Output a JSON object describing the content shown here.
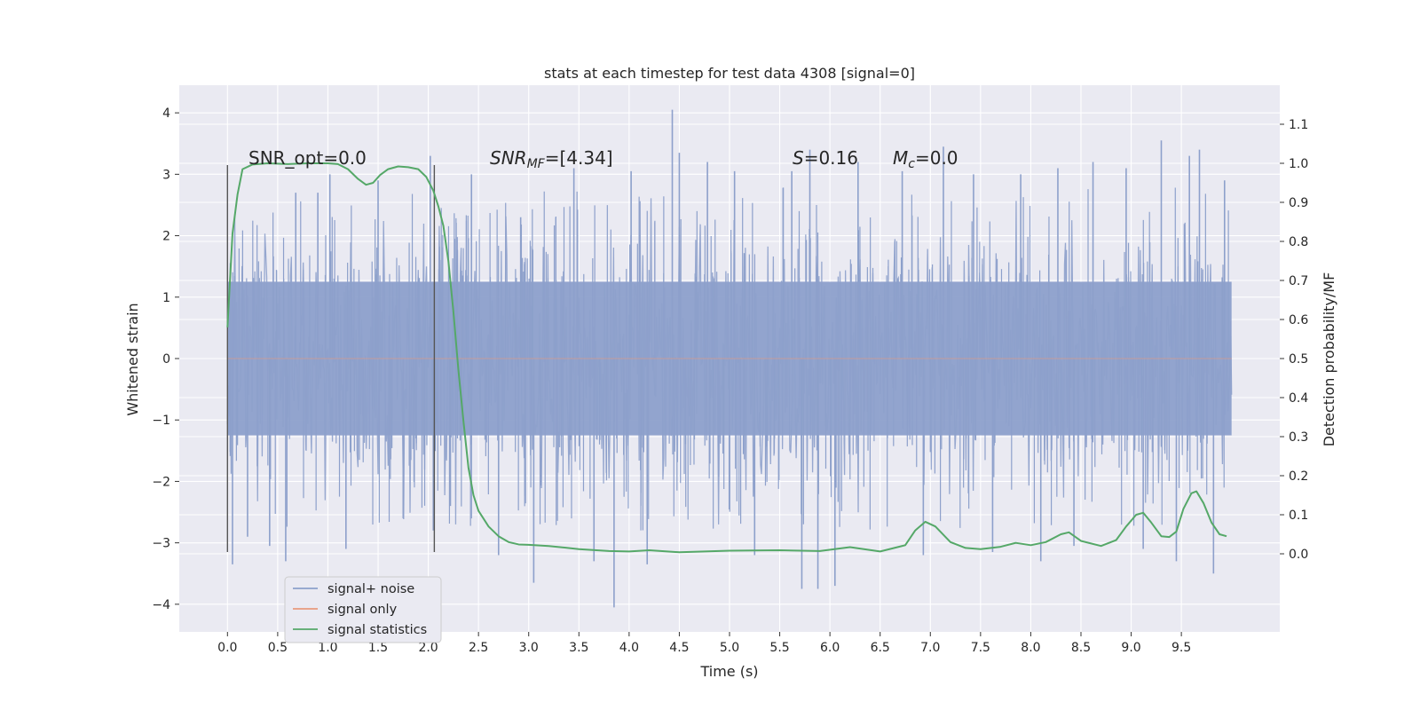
{
  "chart_data": {
    "type": "line",
    "title": "stats at each timestep for test data 4308 [signal=0]",
    "xlabel": "Time (s)",
    "ylabel": "Whitened strain",
    "ylabel_right": "Detection probability/MF",
    "xlim": [
      -0.48,
      10.48
    ],
    "ylim": [
      -4.45,
      4.45
    ],
    "ylim_right": [
      -0.2,
      1.2
    ],
    "x_ticks": [
      "0.0",
      "0.5",
      "1.0",
      "1.5",
      "2.0",
      "2.5",
      "3.0",
      "3.5",
      "4.0",
      "4.5",
      "5.0",
      "5.5",
      "6.0",
      "6.5",
      "7.0",
      "7.5",
      "8.0",
      "8.5",
      "9.0",
      "9.5"
    ],
    "y_ticks": [
      "4",
      "3",
      "2",
      "1",
      "0",
      "−1",
      "−2",
      "−3",
      "−4"
    ],
    "y_tick_values": [
      4,
      3,
      2,
      1,
      0,
      -1,
      -2,
      -3,
      -4
    ],
    "y_right_ticks": [
      "1.1",
      "1.0",
      "0.9",
      "0.8",
      "0.7",
      "0.6",
      "0.5",
      "0.4",
      "0.3",
      "0.2",
      "0.1",
      "0.0"
    ],
    "y_right_tick_values": [
      1.1,
      1.0,
      0.9,
      0.8,
      0.7,
      0.6,
      0.5,
      0.4,
      0.3,
      0.2,
      0.1,
      0.0
    ],
    "grid": true,
    "legend_position": "lower-left",
    "annotations": {
      "snr_opt": "SNR_opt=0.0",
      "snr_mf_a": "SNR",
      "snr_mf_b": "MF",
      "snr_mf_c": "=[4.34]",
      "s_a": "S",
      "s_b": "=0.16",
      "mc_a": "M",
      "mc_b": "c",
      "mc_c": "=0.0"
    },
    "markers_x": [
      0.0,
      2.06
    ],
    "markers_yrange": [
      -3.15,
      3.15
    ],
    "series": [
      {
        "name": "signal+ noise",
        "color": "#8da0cb",
        "description_values": "dense whitened noise spanning 0.0 to 10.0 s",
        "spikes": [
          [
            0.05,
            -3.35
          ],
          [
            0.2,
            -2.9
          ],
          [
            0.42,
            -3.05
          ],
          [
            0.58,
            -3.3
          ],
          [
            0.68,
            2.7
          ],
          [
            0.9,
            2.7
          ],
          [
            1.02,
            3.0
          ],
          [
            1.18,
            -3.1
          ],
          [
            1.5,
            2.9
          ],
          [
            1.75,
            -2.6
          ],
          [
            2.02,
            3.3
          ],
          [
            2.05,
            -2.8
          ],
          [
            2.22,
            -2.4
          ],
          [
            2.43,
            3.0
          ],
          [
            2.7,
            -3.2
          ],
          [
            2.92,
            2.3
          ],
          [
            3.05,
            -3.65
          ],
          [
            3.45,
            3.1
          ],
          [
            3.65,
            -3.3
          ],
          [
            3.85,
            -4.05
          ],
          [
            4.02,
            3.05
          ],
          [
            4.18,
            -3.35
          ],
          [
            4.43,
            4.05
          ],
          [
            4.5,
            3.35
          ],
          [
            4.78,
            3.2
          ],
          [
            5.05,
            3.05
          ],
          [
            5.25,
            -3.2
          ],
          [
            5.62,
            3.05
          ],
          [
            5.72,
            -3.75
          ],
          [
            5.8,
            3.4
          ],
          [
            5.88,
            -3.75
          ],
          [
            6.05,
            -3.7
          ],
          [
            6.28,
            3.2
          ],
          [
            6.72,
            3.05
          ],
          [
            6.93,
            -3.2
          ],
          [
            7.13,
            3.45
          ],
          [
            7.43,
            3.0
          ],
          [
            7.62,
            -3.15
          ],
          [
            7.9,
            3.0
          ],
          [
            8.1,
            -3.3
          ],
          [
            8.27,
            3.1
          ],
          [
            8.43,
            -3.05
          ],
          [
            8.62,
            3.2
          ],
          [
            8.95,
            3.1
          ],
          [
            9.12,
            -3.1
          ],
          [
            9.3,
            3.55
          ],
          [
            9.45,
            -3.3
          ],
          [
            9.58,
            3.3
          ],
          [
            9.68,
            3.4
          ],
          [
            9.82,
            -3.5
          ],
          [
            9.93,
            2.9
          ]
        ]
      },
      {
        "name": "signal only",
        "color": "#e89a7c",
        "x": [
          0.0,
          10.0
        ],
        "y": [
          0.0,
          0.0
        ]
      },
      {
        "name": "signal statistics",
        "color": "#55a868",
        "axis": "right",
        "x": [
          0.0,
          0.05,
          0.1,
          0.15,
          0.25,
          0.4,
          0.6,
          0.8,
          1.0,
          1.1,
          1.2,
          1.3,
          1.38,
          1.45,
          1.52,
          1.6,
          1.7,
          1.8,
          1.9,
          1.98,
          2.05,
          2.1,
          2.15,
          2.2,
          2.25,
          2.3,
          2.35,
          2.4,
          2.45,
          2.5,
          2.6,
          2.7,
          2.8,
          2.9,
          3.0,
          3.2,
          3.5,
          3.8,
          4.0,
          4.2,
          4.5,
          5.0,
          5.5,
          5.9,
          6.2,
          6.5,
          6.75,
          6.85,
          6.95,
          7.05,
          7.2,
          7.35,
          7.5,
          7.7,
          7.85,
          8.0,
          8.15,
          8.3,
          8.38,
          8.5,
          8.7,
          8.85,
          8.95,
          9.05,
          9.12,
          9.2,
          9.3,
          9.38,
          9.45,
          9.52,
          9.6,
          9.65,
          9.72,
          9.8,
          9.88,
          9.95
        ],
        "y": [
          0.58,
          0.82,
          0.92,
          0.985,
          0.997,
          1.0,
          0.998,
          1.0,
          1.0,
          0.998,
          0.985,
          0.96,
          0.945,
          0.95,
          0.97,
          0.985,
          0.992,
          0.99,
          0.985,
          0.965,
          0.93,
          0.89,
          0.84,
          0.75,
          0.62,
          0.47,
          0.34,
          0.22,
          0.15,
          0.11,
          0.07,
          0.045,
          0.03,
          0.024,
          0.023,
          0.02,
          0.012,
          0.007,
          0.006,
          0.009,
          0.004,
          0.008,
          0.009,
          0.007,
          0.017,
          0.006,
          0.022,
          0.06,
          0.082,
          0.07,
          0.03,
          0.015,
          0.012,
          0.018,
          0.028,
          0.022,
          0.03,
          0.05,
          0.055,
          0.033,
          0.02,
          0.035,
          0.07,
          0.1,
          0.105,
          0.08,
          0.045,
          0.043,
          0.057,
          0.115,
          0.155,
          0.16,
          0.13,
          0.08,
          0.05,
          0.045
        ]
      }
    ]
  }
}
